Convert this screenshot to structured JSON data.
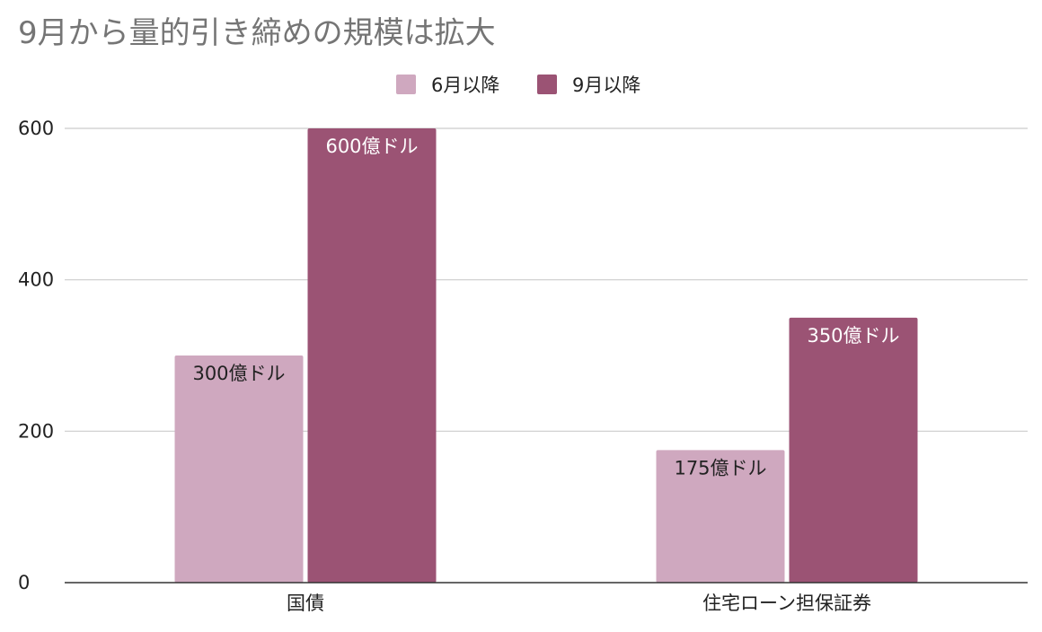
{
  "chart_data": {
    "type": "bar",
    "title": "9月から量的引き締めの規模は拡大",
    "categories": [
      "国債",
      "住宅ローン担保証券"
    ],
    "series": [
      {
        "name": "6月以降",
        "color": "#cfa8bf",
        "values": [
          300,
          175
        ],
        "labels": [
          "300億ドル",
          "175億ドル"
        ],
        "label_color": "#222222"
      },
      {
        "name": "9月以降",
        "color": "#9b5374",
        "values": [
          600,
          350
        ],
        "labels": [
          "600億ドル",
          "350億ドル"
        ],
        "label_color": "#ffffff"
      }
    ],
    "yticks": [
      0,
      200,
      400,
      600
    ],
    "ylim": [
      0,
      600
    ],
    "grid": true,
    "legend_position": "top-center",
    "xlabel": "",
    "ylabel": ""
  }
}
